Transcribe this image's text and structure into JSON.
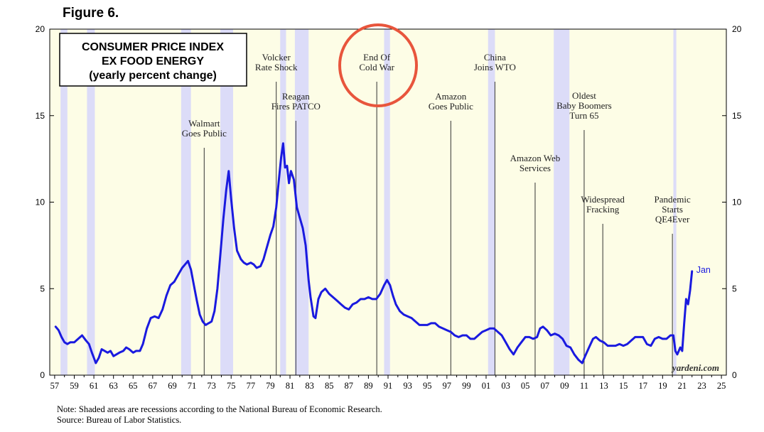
{
  "figure_label": "Figure 6.",
  "chart_data": {
    "type": "line",
    "title_lines": [
      "CONSUMER PRICE INDEX",
      "EX FOOD ENERGY",
      "(yearly percent change)"
    ],
    "xlabel": "",
    "ylabel": "",
    "xlim": [
      1956.5,
      2025.5
    ],
    "ylim": [
      0,
      20
    ],
    "yticks": [
      0,
      5,
      10,
      15,
      20
    ],
    "xticks": [
      1957,
      1959,
      1961,
      1963,
      1965,
      1967,
      1969,
      1971,
      1973,
      1975,
      1977,
      1979,
      1981,
      1983,
      1985,
      1987,
      1989,
      1991,
      1993,
      1995,
      1997,
      1999,
      2001,
      2003,
      2005,
      2007,
      2009,
      2011,
      2013,
      2015,
      2017,
      2019,
      2021,
      2023,
      2025
    ],
    "xtick_labels": [
      "57",
      "59",
      "61",
      "63",
      "65",
      "67",
      "69",
      "71",
      "73",
      "75",
      "77",
      "79",
      "81",
      "83",
      "85",
      "87",
      "89",
      "91",
      "93",
      "95",
      "97",
      "99",
      "01",
      "03",
      "05",
      "07",
      "09",
      "11",
      "13",
      "15",
      "17",
      "19",
      "21",
      "23",
      "25"
    ],
    "grid": false,
    "colors": {
      "line": "#1a1adf",
      "recession": "#dcdcf8",
      "plot_bg": "#fdfde6",
      "highlight_circle": "#e8553c"
    },
    "recessions": [
      [
        1957.6,
        1958.3
      ],
      [
        1960.3,
        1961.1
      ],
      [
        1969.9,
        1970.9
      ],
      [
        1973.9,
        1975.2
      ],
      [
        1980.0,
        1980.6
      ],
      [
        1981.5,
        1982.9
      ],
      [
        1990.6,
        1991.2
      ],
      [
        2001.2,
        2001.9
      ],
      [
        2007.9,
        2009.5
      ],
      [
        2020.1,
        2020.4
      ]
    ],
    "events": [
      {
        "x": 1972.25,
        "label_lines": [
          "Walmart",
          "Goes Public"
        ]
      },
      {
        "x": 1979.6,
        "label_lines": [
          "Volcker",
          "Rate Shock"
        ]
      },
      {
        "x": 1981.6,
        "label_lines": [
          "Reagan",
          "Fires PATCO"
        ]
      },
      {
        "x": 1989.85,
        "label_lines": [
          "End Of",
          "Cold War"
        ]
      },
      {
        "x": 1997.4,
        "label_lines": [
          "Amazon",
          "Goes Public"
        ]
      },
      {
        "x": 2001.9,
        "label_lines": [
          "China",
          "Joins WTO"
        ]
      },
      {
        "x": 2006.0,
        "label_lines": [
          "Amazon Web",
          "Services"
        ]
      },
      {
        "x": 2011.0,
        "label_lines": [
          "Oldest",
          "Baby Boomers",
          "Turn 65"
        ]
      },
      {
        "x": 2012.9,
        "label_lines": [
          "Widespread",
          "Fracking"
        ]
      },
      {
        "x": 2020.0,
        "label_lines": [
          "Pandemic",
          "Starts",
          "QE4Ever"
        ]
      }
    ],
    "highlighted_event": "End Of Cold War",
    "end_label": "Jan",
    "watermark": "yardeni.com",
    "series": [
      {
        "name": "CPI ex food & energy, yearly % change",
        "points": [
          [
            1957.1,
            2.8
          ],
          [
            1957.4,
            2.6
          ],
          [
            1957.7,
            2.2
          ],
          [
            1958.0,
            1.9
          ],
          [
            1958.3,
            1.8
          ],
          [
            1958.6,
            1.9
          ],
          [
            1959.0,
            1.9
          ],
          [
            1959.4,
            2.1
          ],
          [
            1959.8,
            2.3
          ],
          [
            1960.2,
            2.0
          ],
          [
            1960.5,
            1.8
          ],
          [
            1960.8,
            1.3
          ],
          [
            1961.0,
            1.0
          ],
          [
            1961.2,
            0.7
          ],
          [
            1961.5,
            1.0
          ],
          [
            1961.8,
            1.5
          ],
          [
            1962.1,
            1.4
          ],
          [
            1962.4,
            1.3
          ],
          [
            1962.7,
            1.4
          ],
          [
            1963.0,
            1.1
          ],
          [
            1963.3,
            1.2
          ],
          [
            1963.6,
            1.3
          ],
          [
            1964.0,
            1.4
          ],
          [
            1964.3,
            1.6
          ],
          [
            1964.6,
            1.5
          ],
          [
            1965.0,
            1.3
          ],
          [
            1965.3,
            1.4
          ],
          [
            1965.7,
            1.4
          ],
          [
            1966.0,
            1.8
          ],
          [
            1966.4,
            2.7
          ],
          [
            1966.8,
            3.3
          ],
          [
            1967.2,
            3.4
          ],
          [
            1967.6,
            3.3
          ],
          [
            1968.0,
            3.8
          ],
          [
            1968.4,
            4.6
          ],
          [
            1968.8,
            5.2
          ],
          [
            1969.2,
            5.4
          ],
          [
            1969.6,
            5.8
          ],
          [
            1970.0,
            6.2
          ],
          [
            1970.3,
            6.4
          ],
          [
            1970.6,
            6.6
          ],
          [
            1970.9,
            6.1
          ],
          [
            1971.2,
            5.2
          ],
          [
            1971.5,
            4.3
          ],
          [
            1971.8,
            3.5
          ],
          [
            1972.1,
            3.1
          ],
          [
            1972.4,
            2.9
          ],
          [
            1972.7,
            3.0
          ],
          [
            1973.0,
            3.1
          ],
          [
            1973.3,
            3.7
          ],
          [
            1973.6,
            5.0
          ],
          [
            1973.9,
            7.0
          ],
          [
            1974.2,
            9.0
          ],
          [
            1974.5,
            10.7
          ],
          [
            1974.75,
            11.8
          ],
          [
            1975.0,
            10.2
          ],
          [
            1975.3,
            8.5
          ],
          [
            1975.6,
            7.2
          ],
          [
            1976.0,
            6.7
          ],
          [
            1976.3,
            6.5
          ],
          [
            1976.6,
            6.4
          ],
          [
            1977.0,
            6.5
          ],
          [
            1977.3,
            6.4
          ],
          [
            1977.6,
            6.2
          ],
          [
            1978.0,
            6.3
          ],
          [
            1978.3,
            6.7
          ],
          [
            1978.6,
            7.3
          ],
          [
            1979.0,
            8.1
          ],
          [
            1979.3,
            8.6
          ],
          [
            1979.6,
            9.7
          ],
          [
            1979.9,
            11.5
          ],
          [
            1980.1,
            12.6
          ],
          [
            1980.3,
            13.4
          ],
          [
            1980.5,
            12.0
          ],
          [
            1980.7,
            12.1
          ],
          [
            1980.9,
            11.1
          ],
          [
            1981.1,
            11.8
          ],
          [
            1981.4,
            11.3
          ],
          [
            1981.7,
            9.7
          ],
          [
            1982.0,
            9.1
          ],
          [
            1982.3,
            8.5
          ],
          [
            1982.6,
            7.5
          ],
          [
            1982.9,
            5.5
          ],
          [
            1983.1,
            4.5
          ],
          [
            1983.4,
            3.4
          ],
          [
            1983.6,
            3.3
          ],
          [
            1983.9,
            4.4
          ],
          [
            1984.2,
            4.8
          ],
          [
            1984.6,
            5.0
          ],
          [
            1985.0,
            4.7
          ],
          [
            1985.4,
            4.5
          ],
          [
            1985.8,
            4.3
          ],
          [
            1986.2,
            4.1
          ],
          [
            1986.6,
            3.9
          ],
          [
            1987.0,
            3.8
          ],
          [
            1987.4,
            4.1
          ],
          [
            1987.8,
            4.2
          ],
          [
            1988.2,
            4.4
          ],
          [
            1988.6,
            4.4
          ],
          [
            1989.0,
            4.5
          ],
          [
            1989.4,
            4.4
          ],
          [
            1989.8,
            4.4
          ],
          [
            1990.2,
            4.7
          ],
          [
            1990.6,
            5.2
          ],
          [
            1990.9,
            5.5
          ],
          [
            1991.2,
            5.2
          ],
          [
            1991.5,
            4.6
          ],
          [
            1991.8,
            4.1
          ],
          [
            1992.2,
            3.7
          ],
          [
            1992.6,
            3.5
          ],
          [
            1993.0,
            3.4
          ],
          [
            1993.4,
            3.3
          ],
          [
            1993.8,
            3.1
          ],
          [
            1994.2,
            2.9
          ],
          [
            1994.6,
            2.9
          ],
          [
            1995.0,
            2.9
          ],
          [
            1995.4,
            3.0
          ],
          [
            1995.8,
            3.0
          ],
          [
            1996.2,
            2.8
          ],
          [
            1996.6,
            2.7
          ],
          [
            1997.0,
            2.6
          ],
          [
            1997.4,
            2.5
          ],
          [
            1997.8,
            2.3
          ],
          [
            1998.2,
            2.2
          ],
          [
            1998.6,
            2.3
          ],
          [
            1999.0,
            2.3
          ],
          [
            1999.4,
            2.1
          ],
          [
            1999.8,
            2.1
          ],
          [
            2000.2,
            2.3
          ],
          [
            2000.6,
            2.5
          ],
          [
            2001.0,
            2.6
          ],
          [
            2001.4,
            2.7
          ],
          [
            2001.8,
            2.7
          ],
          [
            2002.2,
            2.5
          ],
          [
            2002.6,
            2.3
          ],
          [
            2003.0,
            1.9
          ],
          [
            2003.4,
            1.5
          ],
          [
            2003.8,
            1.2
          ],
          [
            2004.2,
            1.6
          ],
          [
            2004.6,
            1.9
          ],
          [
            2005.0,
            2.2
          ],
          [
            2005.4,
            2.2
          ],
          [
            2005.8,
            2.1
          ],
          [
            2006.2,
            2.2
          ],
          [
            2006.5,
            2.7
          ],
          [
            2006.8,
            2.8
          ],
          [
            2007.2,
            2.6
          ],
          [
            2007.6,
            2.3
          ],
          [
            2008.0,
            2.4
          ],
          [
            2008.4,
            2.3
          ],
          [
            2008.8,
            2.1
          ],
          [
            2009.2,
            1.7
          ],
          [
            2009.6,
            1.6
          ],
          [
            2010.0,
            1.2
          ],
          [
            2010.4,
            0.9
          ],
          [
            2010.8,
            0.7
          ],
          [
            2011.1,
            1.1
          ],
          [
            2011.5,
            1.6
          ],
          [
            2011.9,
            2.1
          ],
          [
            2012.2,
            2.2
          ],
          [
            2012.6,
            2.0
          ],
          [
            2013.0,
            1.9
          ],
          [
            2013.4,
            1.7
          ],
          [
            2013.8,
            1.7
          ],
          [
            2014.2,
            1.7
          ],
          [
            2014.6,
            1.8
          ],
          [
            2015.0,
            1.7
          ],
          [
            2015.4,
            1.8
          ],
          [
            2015.8,
            2.0
          ],
          [
            2016.2,
            2.2
          ],
          [
            2016.6,
            2.2
          ],
          [
            2017.0,
            2.2
          ],
          [
            2017.4,
            1.8
          ],
          [
            2017.8,
            1.7
          ],
          [
            2018.2,
            2.1
          ],
          [
            2018.6,
            2.2
          ],
          [
            2019.0,
            2.1
          ],
          [
            2019.4,
            2.1
          ],
          [
            2019.8,
            2.3
          ],
          [
            2020.1,
            2.3
          ],
          [
            2020.3,
            1.4
          ],
          [
            2020.5,
            1.2
          ],
          [
            2020.8,
            1.6
          ],
          [
            2021.0,
            1.4
          ],
          [
            2021.2,
            3.0
          ],
          [
            2021.4,
            4.4
          ],
          [
            2021.6,
            4.1
          ],
          [
            2021.8,
            4.9
          ],
          [
            2022.0,
            6.0
          ]
        ]
      }
    ]
  },
  "footnotes": [
    "Note: Shaded areas are recessions according to the National Bureau of Economic Research.",
    "Source: Bureau of Labor Statistics."
  ]
}
